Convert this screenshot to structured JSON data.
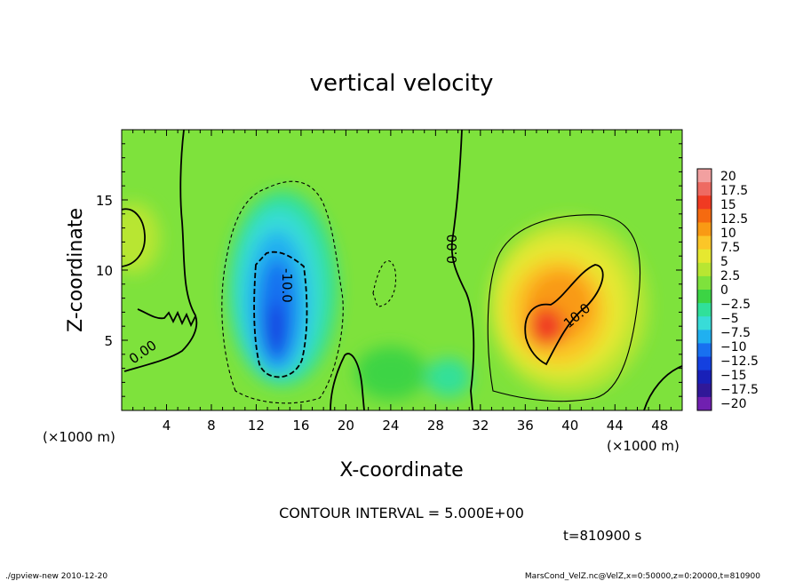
{
  "chart_data": {
    "type": "heatmap",
    "title": "vertical velocity",
    "xlabel": "X-coordinate",
    "ylabel": "Z-coordinate",
    "x_unit": "(×1000 m)",
    "y_unit": "(×1000 m)",
    "xlim": [
      0,
      50
    ],
    "ylim": [
      0,
      20
    ],
    "x_ticks": [
      4,
      8,
      12,
      16,
      20,
      24,
      28,
      32,
      36,
      40,
      44,
      48
    ],
    "y_ticks": [
      5,
      10,
      15
    ],
    "colorbar": {
      "levels": [
        20,
        17.5,
        15,
        12.5,
        10,
        7.5,
        5,
        2.5,
        0,
        -2.5,
        -5,
        -7.5,
        -10,
        -12.5,
        -15,
        -17.5,
        -20
      ],
      "colors": [
        "#f2a0a0",
        "#ee6a62",
        "#f03a22",
        "#f56a10",
        "#f99a14",
        "#fbc628",
        "#e6e830",
        "#b8e632",
        "#7ee23c",
        "#3cd444",
        "#30e09a",
        "#38dcd8",
        "#20b0f0",
        "#1870f0",
        "#1440e0",
        "#1820b8",
        "#301898",
        "#7020b0"
      ]
    },
    "contour_labels": [
      "0.00",
      "0.00",
      "-10.0",
      "10.0"
    ],
    "contour_interval_text": "CONTOUR INTERVAL = 5.000E+00",
    "time_text": "t=810900 s",
    "features": [
      {
        "name": "downdraft",
        "x": 13.5,
        "z": 7,
        "value": -15
      },
      {
        "name": "updraft",
        "x": 38,
        "z": 6.5,
        "value": 12.5
      }
    ]
  },
  "footer": {
    "left": "./gpview-new  2010-12-20",
    "right": "MarsCond_VelZ.nc@VelZ,x=0:50000,z=0:20000,t=810900"
  }
}
